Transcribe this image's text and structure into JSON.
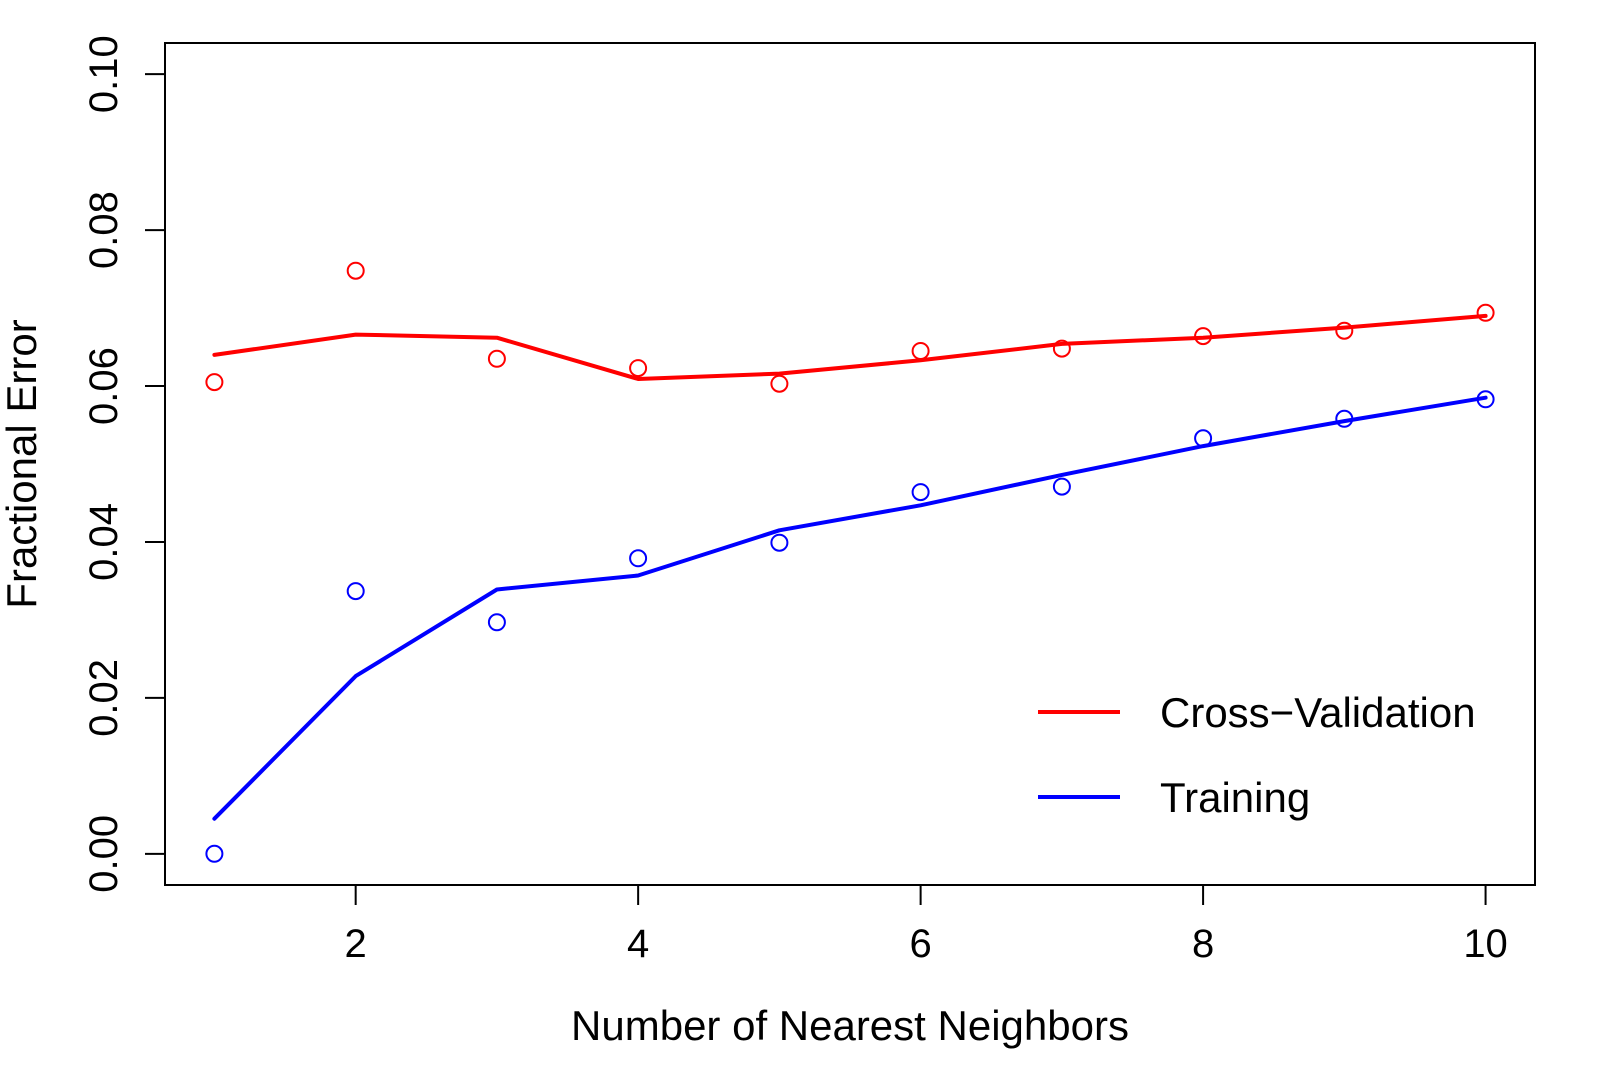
{
  "chart_data": {
    "type": "line",
    "title": "",
    "xlabel": "Number of Nearest Neighbors",
    "ylabel": "Fractional Error",
    "xlim": [
      0.65,
      10.35
    ],
    "ylim": [
      -0.004,
      0.104
    ],
    "x_ticks": [
      2,
      4,
      6,
      8,
      10
    ],
    "x_tick_labels": [
      "2",
      "4",
      "6",
      "8",
      "10"
    ],
    "y_ticks": [
      0.0,
      0.02,
      0.04,
      0.06,
      0.08,
      0.1
    ],
    "y_tick_labels": [
      "0.00",
      "0.02",
      "0.04",
      "0.06",
      "0.08",
      "0.10"
    ],
    "grid": false,
    "legend_position": "bottom-right",
    "x": [
      1,
      2,
      3,
      4,
      5,
      6,
      7,
      8,
      9,
      10
    ],
    "series": [
      {
        "name": "Cross−Validation",
        "color": "#ff0000",
        "points": [
          0.0605,
          0.0748,
          0.0635,
          0.0623,
          0.0603,
          0.0645,
          0.0648,
          0.0664,
          0.0671,
          0.0694
        ],
        "line": [
          0.064,
          0.0666,
          0.0662,
          0.0609,
          0.0616,
          0.0633,
          0.0654,
          0.0662,
          0.0675,
          0.069
        ]
      },
      {
        "name": "Training",
        "color": "#0000ff",
        "points": [
          0.0,
          0.0337,
          0.0297,
          0.0379,
          0.0399,
          0.0464,
          0.0471,
          0.0533,
          0.0558,
          0.0583
        ],
        "line": [
          0.0045,
          0.0228,
          0.0339,
          0.0357,
          0.0415,
          0.0447,
          0.0486,
          0.0523,
          0.0555,
          0.0585
        ]
      }
    ]
  }
}
